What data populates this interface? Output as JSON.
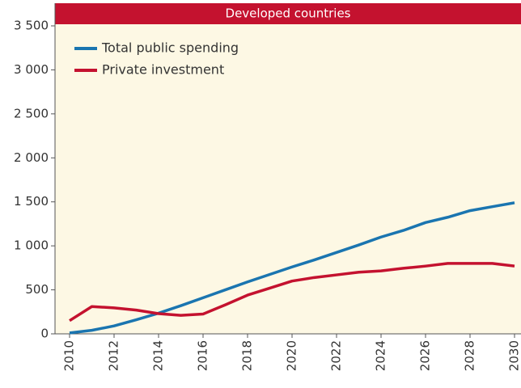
{
  "chart_data": {
    "type": "line",
    "title": "Developed countries",
    "x": [
      2010,
      2011,
      2012,
      2013,
      2014,
      2015,
      2016,
      2017,
      2018,
      2019,
      2020,
      2021,
      2022,
      2023,
      2024,
      2025,
      2026,
      2027,
      2028,
      2029,
      2030
    ],
    "series": [
      {
        "name": "Total public spending",
        "color": "#1a75b0",
        "values": [
          10,
          40,
          90,
          160,
          235,
          320,
          410,
          500,
          590,
          675,
          760,
          840,
          925,
          1010,
          1100,
          1175,
          1265,
          1325,
          1400,
          1445,
          1490
        ]
      },
      {
        "name": "Private investment",
        "color": "#c4122f",
        "values": [
          150,
          310,
          295,
          270,
          230,
          210,
          225,
          330,
          440,
          520,
          600,
          640,
          670,
          700,
          715,
          745,
          770,
          800,
          800,
          800,
          770
        ]
      }
    ],
    "xlim": [
      2010,
      2030
    ],
    "xticks": [
      2010,
      2012,
      2014,
      2016,
      2018,
      2020,
      2022,
      2024,
      2026,
      2028,
      2030
    ],
    "ylim": [
      0,
      3500
    ],
    "yticks": [
      0,
      500,
      {
        "value": 1000,
        "label": "1 000"
      },
      {
        "value": 1500,
        "label": "1 500"
      },
      {
        "value": 2000,
        "label": "2 000"
      },
      {
        "value": 2500,
        "label": "2 500"
      },
      {
        "value": 3000,
        "label": "3 000"
      },
      {
        "value": 3500,
        "label": "3 500"
      }
    ]
  }
}
